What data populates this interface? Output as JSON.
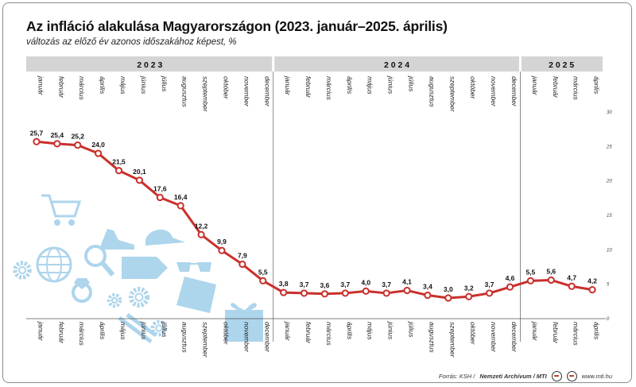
{
  "title": "Az infláció alakulása Magyarországon (2023. január–2025. április)",
  "subtitle": "változás az előző év azonos időszakához képest, %",
  "footer": {
    "source_prefix": "Forrás: KSH / ",
    "archive": "Nemzeti Archívum / MTI",
    "site": "www.mti.hu"
  },
  "colors": {
    "line": "#c9302c",
    "year_band": "#d4d4d4",
    "icons": "#a9d3ec"
  },
  "decorative_icons": [
    "cart-icon",
    "globe-icon",
    "magnifier-icon",
    "ring-icon",
    "gear-icon",
    "shoe-icon",
    "cap-icon",
    "price-tag-icon",
    "glasses-icon",
    "shirt-icon",
    "gift-icon",
    "pliers-icon"
  ],
  "chart_data": {
    "type": "line",
    "title": "Az infláció alakulása Magyarországon (2023. január–2025. április)",
    "subtitle": "változás az előző év azonos időszakához képest, %",
    "years": [
      {
        "label": "2 0 2 3",
        "months": 12
      },
      {
        "label": "2 0 2 4",
        "months": 12
      },
      {
        "label": "2 0 2 5",
        "months": 4
      }
    ],
    "categories": [
      "január",
      "február",
      "március",
      "április",
      "május",
      "június",
      "július",
      "augusztus",
      "szeptember",
      "október",
      "november",
      "december",
      "január",
      "február",
      "március",
      "április",
      "május",
      "június",
      "július",
      "augusztus",
      "szeptember",
      "október",
      "november",
      "december",
      "január",
      "február",
      "március",
      "április"
    ],
    "series": [
      {
        "values": [
          25.7,
          25.4,
          25.2,
          24.0,
          21.5,
          20.1,
          17.6,
          16.4,
          12.2,
          9.9,
          7.9,
          5.5,
          3.8,
          3.7,
          3.6,
          3.7,
          4.0,
          3.7,
          4.1,
          3.4,
          3.0,
          3.2,
          3.7,
          4.6,
          5.5,
          5.6,
          4.7,
          4.2
        ],
        "labels": [
          "25,7",
          "25,4",
          "25,2",
          "24,0",
          "21,5",
          "20,1",
          "17,6",
          "16,4",
          "12,2",
          "9,9",
          "7,9",
          "5,5",
          "3,8",
          "3,7",
          "3,6",
          "3,7",
          "4,0",
          "3,7",
          "4,1",
          "3,4",
          "3,0",
          "3,2",
          "3,7",
          "4,6",
          "5,5",
          "5,6",
          "4,7",
          "4,2"
        ]
      }
    ],
    "ylim": [
      0,
      30
    ],
    "yticks": [
      0,
      5,
      10,
      15,
      20,
      25,
      30
    ],
    "grid": false,
    "legend": "none"
  }
}
